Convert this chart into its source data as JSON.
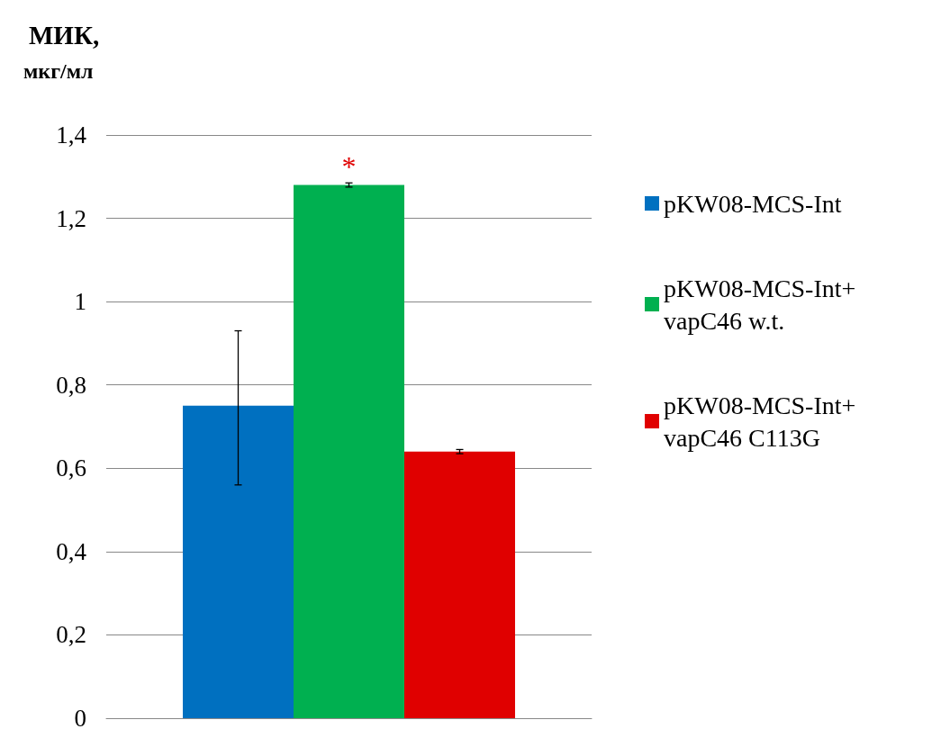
{
  "chart_data": {
    "type": "bar",
    "ylabel": "МИК, мкг/мл",
    "categories": [
      null
    ],
    "series": [
      {
        "name": "pKW08-MCS-Int",
        "color": "#0070c0",
        "values": [
          0.75
        ],
        "errors": [
          [
            0.56,
            0.93
          ]
        ]
      },
      {
        "name": "pKW08-MCS-Int+ vapC46 w.t.",
        "color": "#00b050",
        "values": [
          1.28
        ],
        "errors": [
          0.005
        ]
      },
      {
        "name": "pKW08-MCS-Int+ vapC46 C113G",
        "color": "#e00000",
        "values": [
          0.64
        ],
        "errors": [
          0.005
        ]
      }
    ],
    "ylim": [
      0,
      1.4
    ],
    "yticks": [
      0,
      {
        "value": 0.2,
        "label": "0,2"
      },
      {
        "value": 0.4,
        "label": "0,4"
      },
      {
        "value": 0.6,
        "label": "0,6"
      },
      {
        "value": 0.8,
        "label": "0,8"
      },
      1,
      {
        "value": 1.2,
        "label": "1,2"
      },
      {
        "value": 1.4,
        "label": "1,4"
      }
    ],
    "grid": "y",
    "legend": "right",
    "annotations": [
      "*"
    ]
  }
}
